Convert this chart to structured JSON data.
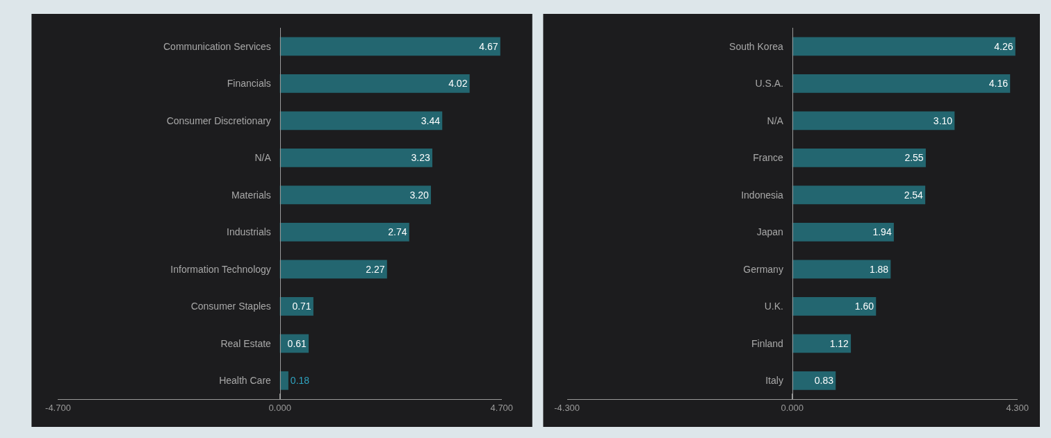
{
  "chart_data": [
    {
      "type": "bar",
      "orientation": "horizontal",
      "categories": [
        "Communication Services",
        "Financials",
        "Consumer Discretionary",
        "N/A",
        "Materials",
        "Industrials",
        "Information Technology",
        "Consumer Staples",
        "Real Estate",
        "Health Care"
      ],
      "values": [
        4.67,
        4.02,
        3.44,
        3.23,
        3.2,
        2.74,
        2.27,
        0.71,
        0.61,
        0.18
      ],
      "color": "#236670",
      "value_labels": [
        "4.67",
        "4.02",
        "3.44",
        "3.23",
        "3.20",
        "2.74",
        "2.27",
        "0.71",
        "0.61",
        "0.18"
      ],
      "xlim": [
        -4.7,
        4.7
      ],
      "xticks": [
        {
          "value": -4.7,
          "label": "-4.700"
        },
        {
          "value": 0,
          "label": "0.000"
        },
        {
          "value": 4.7,
          "label": "4.700"
        }
      ]
    },
    {
      "type": "bar",
      "orientation": "horizontal",
      "categories": [
        "South Korea",
        "U.S.A.",
        "N/A",
        "France",
        "Indonesia",
        "Japan",
        "Germany",
        "U.K.",
        "Finland",
        "Italy"
      ],
      "values": [
        4.26,
        4.16,
        3.1,
        2.55,
        2.54,
        1.94,
        1.88,
        1.6,
        1.12,
        0.83
      ],
      "color": "#236670",
      "value_labels": [
        "4.26",
        "4.16",
        "3.10",
        "2.55",
        "2.54",
        "1.94",
        "1.88",
        "1.60",
        "1.12",
        "0.83"
      ],
      "xlim": [
        -4.3,
        4.3
      ],
      "xticks": [
        {
          "value": -4.3,
          "label": "-4.300"
        },
        {
          "value": 0,
          "label": "0.000"
        },
        {
          "value": 4.3,
          "label": "4.300"
        }
      ]
    }
  ]
}
